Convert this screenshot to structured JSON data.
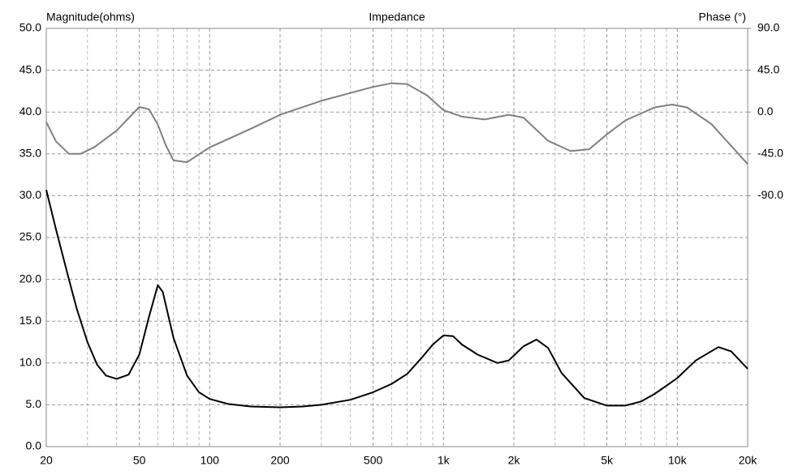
{
  "chart_data": {
    "type": "line",
    "title": "Impedance",
    "ylabel": "Magnitude(ohms)",
    "y2label": "Phase (°)",
    "xscale": "log",
    "grid": true,
    "xlim": [
      20,
      20000
    ],
    "xticks": [
      20,
      50,
      100,
      200,
      500,
      {
        "value": 1000,
        "label": "1k"
      },
      {
        "value": 2000,
        "label": "2k"
      },
      {
        "value": 5000,
        "label": "5k"
      },
      {
        "value": 10000,
        "label": "10k"
      },
      {
        "value": 20000,
        "label": "20k"
      }
    ],
    "xgrid_minor": [
      30,
      40,
      60,
      70,
      80,
      90,
      300,
      400,
      600,
      700,
      800,
      900,
      3000,
      4000,
      6000,
      7000,
      8000,
      9000
    ],
    "ylim": [
      0,
      50
    ],
    "yticks": [
      {
        "value": 0,
        "label": "0.0"
      },
      {
        "value": 5,
        "label": "5.0"
      },
      {
        "value": 10,
        "label": "10.0"
      },
      {
        "value": 15,
        "label": "15.0"
      },
      {
        "value": 20,
        "label": "20.0"
      },
      {
        "value": 25,
        "label": "25.0"
      },
      {
        "value": 30,
        "label": "30.0"
      },
      {
        "value": 35,
        "label": "35.0"
      },
      {
        "value": 40,
        "label": "40.0"
      },
      {
        "value": 45,
        "label": "45.0"
      },
      {
        "value": 50,
        "label": "50.0"
      }
    ],
    "y2lim": [
      -360,
      90
    ],
    "y2ticks": [
      {
        "value": 90,
        "label": "90.0"
      },
      {
        "value": 45,
        "label": "45.0"
      },
      {
        "value": 0,
        "label": "0.0"
      },
      {
        "value": -45,
        "label": "-45.0"
      },
      {
        "value": -90,
        "label": "-90.0"
      }
    ],
    "series": [
      {
        "name": "Magnitude",
        "color": "#000000",
        "x": [
          20,
          22,
          25,
          27,
          30,
          33,
          36,
          40,
          45,
          50,
          55,
          60,
          63,
          70,
          80,
          90,
          100,
          120,
          150,
          200,
          250,
          300,
          400,
          500,
          600,
          700,
          800,
          900,
          1000,
          1100,
          1200,
          1400,
          1700,
          1900,
          2200,
          2500,
          2800,
          3200,
          4000,
          5000,
          6000,
          7000,
          8000,
          10000,
          12000,
          15000,
          17000,
          20000
        ],
        "values": [
          30.7,
          26,
          20,
          16.5,
          12.5,
          9.8,
          8.5,
          8.1,
          8.6,
          11,
          15.5,
          19.3,
          18.5,
          13,
          8.5,
          6.5,
          5.7,
          5.1,
          4.8,
          4.7,
          4.8,
          5.0,
          5.6,
          6.5,
          7.5,
          8.7,
          10.5,
          12.2,
          13.3,
          13.2,
          12.2,
          11,
          10,
          10.3,
          12,
          12.8,
          11.8,
          8.8,
          5.8,
          4.9,
          4.9,
          5.4,
          6.3,
          8.2,
          10.3,
          11.9,
          11.4,
          9.3
        ]
      },
      {
        "name": "Phase",
        "color": "#808080",
        "axis": "y2",
        "x": [
          20,
          22,
          25,
          28,
          32,
          40,
          50,
          55,
          60,
          65,
          70,
          80,
          100,
          150,
          200,
          300,
          500,
          600,
          700,
          850,
          1000,
          1200,
          1500,
          1900,
          2200,
          2800,
          3500,
          4200,
          5000,
          6000,
          8000,
          9500,
          11000,
          14000,
          20000
        ],
        "values": [
          -10.8,
          -31.5,
          -45,
          -45,
          -38,
          -20,
          5.4,
          3,
          -13.5,
          -36,
          -52,
          -54,
          -38,
          -18,
          -3,
          12,
          27,
          31,
          30,
          18,
          2,
          -5,
          -8,
          -3,
          -6,
          -31,
          -42,
          -40,
          -24,
          -9,
          5,
          8,
          5,
          -13,
          -56
        ]
      }
    ]
  }
}
